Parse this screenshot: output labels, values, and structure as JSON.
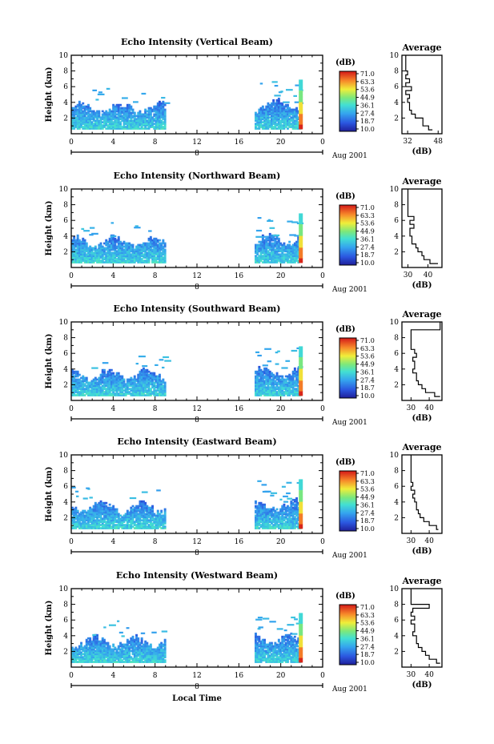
{
  "figure": {
    "xlabel": "Local Time",
    "date_label": "Aug 2001",
    "date_marker": "8",
    "x_ticks": [
      "0",
      "4",
      "8",
      "12",
      "16",
      "20",
      "0"
    ],
    "y_ticks": [
      "2",
      "4",
      "6",
      "8",
      "10"
    ],
    "ylabel": "Height (km)",
    "colorbar_unit": "(dB)",
    "colorbar_ticks": [
      "71.0",
      "63.3",
      "53.6",
      "44.9",
      "36.1",
      "27.4",
      "18.7",
      "10.0"
    ],
    "avg_title": "Average",
    "avg_unit": "(dB)"
  },
  "chart_data": [
    {
      "type": "heatmap",
      "title": "Echo Intensity (Vertical Beam)",
      "xlabel": "",
      "ylabel": "Height (km)",
      "xlim": [
        0,
        24
      ],
      "ylim": [
        0,
        10
      ],
      "clim": [
        10.0,
        71.0
      ],
      "data_segments": [
        [
          0,
          9
        ],
        [
          17.5,
          21.9
        ]
      ],
      "profile": {
        "title": "Average",
        "xlabel": "(dB)",
        "xticks": [
          "32",
          "48"
        ],
        "xlim": [
          29,
          50
        ],
        "heights": [
          0.5,
          1.0,
          1.5,
          2.0,
          2.5,
          3.0,
          3.5,
          4.0,
          4.5,
          5.0,
          5.5,
          6.0,
          6.5,
          7.0,
          7.5,
          8.0,
          8.5,
          9.0,
          9.5,
          10.0
        ],
        "values": [
          45,
          43,
          40,
          40,
          36,
          34,
          33,
          33,
          32,
          33,
          31,
          34,
          31,
          33,
          31,
          32,
          31,
          31,
          31,
          31
        ]
      }
    },
    {
      "type": "heatmap",
      "title": "Echo Intensity (Northward Beam)",
      "xlabel": "",
      "ylabel": "Height (km)",
      "xlim": [
        0,
        24
      ],
      "ylim": [
        0,
        10
      ],
      "clim": [
        10.0,
        71.0
      ],
      "data_segments": [
        [
          0,
          9
        ],
        [
          17.5,
          21.9
        ]
      ],
      "profile": {
        "title": "Average",
        "xlabel": "(dB)",
        "xticks": [
          "30",
          "40"
        ],
        "xlim": [
          27,
          47
        ],
        "heights": [
          0.5,
          1.0,
          1.5,
          2.0,
          2.5,
          3.0,
          3.5,
          4.0,
          4.5,
          5.0,
          5.5,
          6.0,
          6.5,
          7.0,
          7.5,
          8.0,
          8.5,
          9.0,
          9.5,
          10.0
        ],
        "values": [
          45,
          41,
          38,
          37,
          35,
          34,
          32,
          32,
          31,
          31,
          33,
          31,
          33,
          30,
          30,
          30,
          30,
          30,
          30,
          30
        ]
      }
    },
    {
      "type": "heatmap",
      "title": "Echo Intensity (Southward Beam)",
      "xlabel": "",
      "ylabel": "Height (km)",
      "xlim": [
        0,
        24
      ],
      "ylim": [
        0,
        10
      ],
      "clim": [
        10.0,
        71.0
      ],
      "data_segments": [
        [
          0,
          9
        ],
        [
          17.5,
          21.9
        ]
      ],
      "profile": {
        "title": "Average",
        "xlabel": "(dB)",
        "xticks": [
          "30",
          "40"
        ],
        "xlim": [
          25,
          47
        ],
        "heights": [
          0.5,
          1.0,
          1.5,
          2.0,
          2.5,
          3.0,
          3.5,
          4.0,
          4.5,
          5.0,
          5.5,
          6.0,
          6.5,
          7.0,
          7.5,
          8.0,
          8.5,
          9.0,
          9.5,
          10.0
        ],
        "values": [
          46,
          43,
          38,
          36,
          34,
          33,
          33,
          31,
          32,
          32,
          31,
          33,
          32,
          30,
          30,
          30,
          30,
          30,
          46,
          46
        ]
      }
    },
    {
      "type": "heatmap",
      "title": "Echo Intensity (Eastward Beam)",
      "xlabel": "",
      "ylabel": "Height (km)",
      "xlim": [
        0,
        24
      ],
      "ylim": [
        0,
        10
      ],
      "clim": [
        10.0,
        71.0
      ],
      "data_segments": [
        [
          0,
          9
        ],
        [
          17.5,
          21.9
        ]
      ],
      "profile": {
        "title": "Average",
        "xlabel": "(dB)",
        "xticks": [
          "30",
          "40"
        ],
        "xlim": [
          25,
          47
        ],
        "heights": [
          0.5,
          1.0,
          1.5,
          2.0,
          2.5,
          3.0,
          3.5,
          4.0,
          4.5,
          5.0,
          5.5,
          6.0,
          6.5,
          7.0,
          7.5,
          8.0,
          8.5,
          9.0,
          9.5,
          10.0
        ],
        "values": [
          45,
          44,
          40,
          37,
          35,
          34,
          33,
          33,
          32,
          31,
          32,
          30,
          31,
          30,
          30,
          30,
          30,
          30,
          30,
          30
        ]
      }
    },
    {
      "type": "heatmap",
      "title": "Echo Intensity (Westward Beam)",
      "xlabel": "Local Time",
      "ylabel": "Height (km)",
      "xlim": [
        0,
        24
      ],
      "ylim": [
        0,
        10
      ],
      "clim": [
        10.0,
        71.0
      ],
      "data_segments": [
        [
          0,
          9
        ],
        [
          17.5,
          21.9
        ]
      ],
      "profile": {
        "title": "Average",
        "xlabel": "(dB)",
        "xticks": [
          "30",
          "40"
        ],
        "xlim": [
          25,
          47
        ],
        "heights": [
          0.5,
          1.0,
          1.5,
          2.0,
          2.5,
          3.0,
          3.5,
          4.0,
          4.5,
          5.0,
          5.5,
          6.0,
          6.5,
          7.0,
          7.5,
          8.0,
          8.5,
          9.0,
          9.5,
          10.0
        ],
        "values": [
          46,
          44,
          40,
          38,
          36,
          34,
          33,
          33,
          31,
          32,
          32,
          30,
          32,
          30,
          31,
          40,
          30,
          30,
          30,
          30
        ]
      }
    }
  ]
}
